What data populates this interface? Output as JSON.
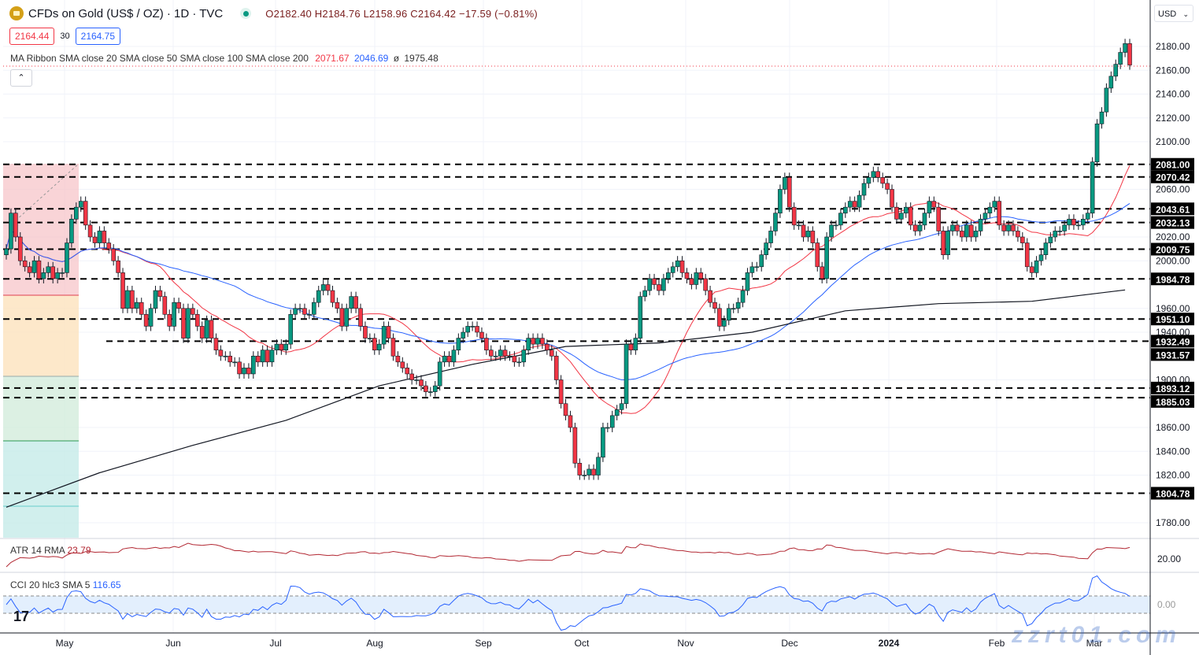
{
  "header": {
    "title": "CFDs on Gold (US$ / OZ) · 1D · TVC",
    "open": "O2182.40",
    "high": "H2184.76",
    "low": "L2158.96",
    "close": "C2164.42",
    "change": "−17.59 (−0.81%)",
    "bid": "2164.44",
    "spread": "30",
    "ask": "2164.75"
  },
  "ma_legend": {
    "label": "MA Ribbon SMA close 20 SMA close 50 SMA close 100 SMA close 200",
    "v1": "2071.67",
    "v2": "2046.69",
    "v3": "ø",
    "v4": "1975.48"
  },
  "currency": "USD",
  "atr_legend": {
    "label": "ATR 14 RMA",
    "value": "23.79"
  },
  "cci_legend": {
    "label": "CCI 20 hlc3 SMA 5",
    "value": "116.65"
  },
  "watermark": "zzrt01.com",
  "colors": {
    "up": "#089981",
    "down": "#f23645",
    "sma20": "#f23645",
    "sma50": "#2962ff",
    "sma200": "#131722",
    "atr": "#b22833",
    "cci": "#2962ff"
  },
  "chart_data": {
    "type": "candlestick",
    "ylim": [
      1760,
      2195
    ],
    "y_ticks": [
      "2180.00",
      "2160.00",
      "2140.00",
      "2120.00",
      "2100.00",
      "2060.00",
      "2020.00",
      "2000.00",
      "1960.00",
      "1940.00",
      "1900.00",
      "1860.00",
      "1840.00",
      "1820.00",
      "1780.00"
    ],
    "x_ticks": [
      "May",
      "Jun",
      "Jul",
      "Aug",
      "Sep",
      "Oct",
      "Nov",
      "Dec",
      "2024",
      "Feb",
      "Mar"
    ],
    "closes": [
      2010,
      2040,
      2020,
      2000,
      1995,
      1990,
      2000,
      1985,
      1990,
      1995,
      1985,
      1990,
      1990,
      2015,
      2035,
      2045,
      2050,
      2030,
      2020,
      2015,
      2025,
      2015,
      2010,
      2000,
      1990,
      1960,
      1975,
      1960,
      1965,
      1955,
      1945,
      1960,
      1975,
      1970,
      1955,
      1945,
      1965,
      1960,
      1935,
      1960,
      1955,
      1945,
      1935,
      1950,
      1935,
      1925,
      1920,
      1920,
      1915,
      1915,
      1905,
      1910,
      1905,
      1920,
      1915,
      1925,
      1915,
      1925,
      1930,
      1925,
      1930,
      1955,
      1960,
      1960,
      1955,
      1955,
      1965,
      1975,
      1980,
      1975,
      1965,
      1960,
      1945,
      1960,
      1970,
      1960,
      1945,
      1935,
      1935,
      1925,
      1930,
      1945,
      1935,
      1920,
      1915,
      1910,
      1905,
      1900,
      1900,
      1895,
      1890,
      1890,
      1895,
      1915,
      1920,
      1915,
      1925,
      1935,
      1940,
      1945,
      1945,
      1940,
      1935,
      1925,
      1920,
      1920,
      1925,
      1920,
      1920,
      1915,
      1915,
      1925,
      1935,
      1930,
      1935,
      1930,
      1925,
      1920,
      1900,
      1880,
      1870,
      1860,
      1830,
      1820,
      1820,
      1825,
      1820,
      1835,
      1860,
      1860,
      1870,
      1875,
      1880,
      1930,
      1925,
      1935,
      1970,
      1975,
      1985,
      1980,
      1975,
      1985,
      1990,
      1995,
      2000,
      1990,
      1985,
      1980,
      1990,
      1985,
      1975,
      1965,
      1960,
      1945,
      1950,
      1960,
      1960,
      1965,
      1975,
      1990,
      1995,
      1995,
      2005,
      2015,
      2025,
      2040,
      2060,
      2070,
      2045,
      2030,
      2030,
      2020,
      2025,
      2015,
      1995,
      1985,
      2020,
      2030,
      2030,
      2040,
      2045,
      2050,
      2045,
      2055,
      2065,
      2070,
      2075,
      2070,
      2065,
      2060,
      2045,
      2035,
      2040,
      2045,
      2030,
      2025,
      2030,
      2040,
      2050,
      2045,
      2025,
      2005,
      2025,
      2030,
      2025,
      2020,
      2030,
      2020,
      2025,
      2035,
      2040,
      2045,
      2050,
      2030,
      2025,
      2030,
      2025,
      2020,
      2015,
      1995,
      1990,
      2000,
      2005,
      2015,
      2020,
      2025,
      2025,
      2030,
      2035,
      2030,
      2030,
      2035,
      2040,
      2083,
      2115,
      2125,
      2145,
      2155,
      2165,
      2175,
      2182.4,
      2164.42
    ],
    "sma200_sampled_every_20_bars": [
      1793,
      1822,
      1845,
      1866,
      1895,
      1913,
      1928,
      1931,
      1940,
      1958,
      1964,
      1966,
      1975.48
    ],
    "levels": [
      "2081.00",
      "2070.42",
      "2043.61",
      "2032.13",
      "2009.75",
      "1984.78",
      "1951.10",
      "1932.49",
      "1931.57",
      "1893.12",
      "1885.03",
      "1804.78"
    ],
    "atr_tick": "20.00",
    "cci_tick": "0.00"
  }
}
